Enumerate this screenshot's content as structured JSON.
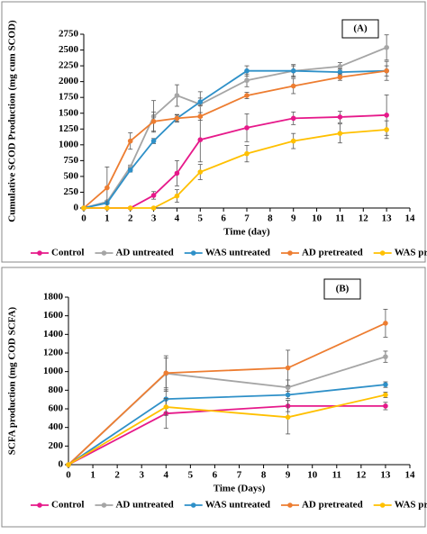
{
  "chart_data": [
    {
      "type": "line",
      "annotation": "(A)",
      "y_label": "Cumulative SCOD Production (mg cum SCOD)",
      "x_label": "Time (day)",
      "x": [
        0,
        1,
        2,
        3,
        4,
        5,
        7,
        9,
        11,
        13
      ],
      "xlim": [
        0,
        14
      ],
      "xticks": [
        0,
        1,
        2,
        3,
        4,
        5,
        6,
        7,
        8,
        9,
        10,
        11,
        12,
        13,
        14
      ],
      "ylim": [
        0,
        2750
      ],
      "yticks": [
        0,
        250,
        500,
        750,
        1000,
        1250,
        1500,
        1750,
        2000,
        2250,
        2500,
        2750
      ],
      "series": [
        {
          "name": "Control",
          "color": "#e6198a",
          "values": [
            0,
            0,
            0,
            200,
            550,
            1080,
            1270,
            1420,
            1440,
            1470
          ],
          "errors": [
            0,
            0,
            0,
            60,
            200,
            350,
            220,
            100,
            90,
            320
          ]
        },
        {
          "name": "AD untreated",
          "color": "#a5a5a5",
          "values": [
            0,
            100,
            650,
            1450,
            1780,
            1640,
            2020,
            2170,
            2240,
            2540
          ],
          "errors": [
            0,
            20,
            30,
            250,
            170,
            200,
            100,
            100,
            60,
            200
          ]
        },
        {
          "name": "WAS untreated",
          "color": "#2e90c8",
          "values": [
            0,
            80,
            600,
            1060,
            1420,
            1680,
            2170,
            2170,
            2150,
            2170
          ],
          "errors": [
            0,
            20,
            30,
            40,
            50,
            60,
            80,
            80,
            50,
            80
          ]
        },
        {
          "name": "AD pretreated",
          "color": "#ed7d31",
          "values": [
            0,
            320,
            1060,
            1370,
            1420,
            1450,
            1780,
            1930,
            2070,
            2170
          ],
          "errors": [
            0,
            330,
            130,
            150,
            60,
            60,
            50,
            120,
            50,
            150
          ]
        },
        {
          "name": "WAS pretreated",
          "color": "#ffc000",
          "values": [
            0,
            0,
            0,
            0,
            190,
            570,
            860,
            1060,
            1180,
            1240
          ],
          "errors": [
            0,
            0,
            0,
            0,
            100,
            120,
            130,
            120,
            150,
            140
          ]
        }
      ]
    },
    {
      "type": "line",
      "annotation": "(B)",
      "y_label": "SCFA production (mg COD SCFA)",
      "x_label": "Time (Days)",
      "x": [
        0,
        4,
        9,
        13
      ],
      "xlim": [
        0,
        14
      ],
      "xticks": [
        0,
        1,
        2,
        3,
        4,
        5,
        6,
        7,
        8,
        9,
        10,
        11,
        12,
        13,
        14
      ],
      "ylim": [
        0,
        1800
      ],
      "yticks": [
        0,
        200,
        400,
        600,
        800,
        1000,
        1200,
        1400,
        1600,
        1800
      ],
      "series": [
        {
          "name": "Control",
          "color": "#e6198a",
          "values": [
            0,
            550,
            630,
            630
          ],
          "errors": [
            0,
            160,
            60,
            40
          ]
        },
        {
          "name": "AD untreated",
          "color": "#a5a5a5",
          "values": [
            0,
            980,
            830,
            1160
          ],
          "errors": [
            0,
            190,
            80,
            60
          ]
        },
        {
          "name": "WAS untreated",
          "color": "#2e90c8",
          "values": [
            0,
            705,
            750,
            860
          ],
          "errors": [
            0,
            100,
            40,
            30
          ]
        },
        {
          "name": "AD pretreated",
          "color": "#ed7d31",
          "values": [
            0,
            985,
            1040,
            1520
          ],
          "errors": [
            0,
            160,
            190,
            150
          ]
        },
        {
          "name": "WAS pretreated",
          "color": "#ffc000",
          "values": [
            0,
            620,
            510,
            750
          ],
          "errors": [
            0,
            90,
            180,
            30
          ]
        }
      ]
    }
  ]
}
